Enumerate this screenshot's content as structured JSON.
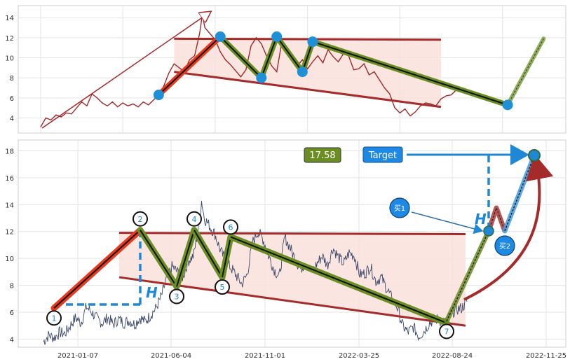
{
  "chart_data": [
    {
      "type": "line",
      "panel": "top",
      "title": "",
      "xlabel": "",
      "ylabel": "",
      "ylim": [
        2.5,
        15.2
      ],
      "yticks": [
        4,
        6,
        8,
        10,
        12,
        14
      ],
      "grid": true,
      "series": [
        {
          "values_by_time": [
            [
              0.0,
              3.1
            ],
            [
              0.01,
              4.0
            ],
            [
              0.02,
              3.8
            ],
            [
              0.03,
              4.3
            ],
            [
              0.04,
              4.1
            ],
            [
              0.05,
              4.5
            ],
            [
              0.06,
              4.4
            ],
            [
              0.07,
              5.0
            ],
            [
              0.08,
              5.6
            ],
            [
              0.09,
              5.2
            ],
            [
              0.1,
              6.4
            ],
            [
              0.11,
              6.0
            ],
            [
              0.12,
              5.5
            ],
            [
              0.13,
              5.2
            ],
            [
              0.14,
              5.6
            ],
            [
              0.15,
              5.1
            ],
            [
              0.16,
              5.5
            ],
            [
              0.17,
              5.2
            ],
            [
              0.18,
              5.4
            ],
            [
              0.19,
              5.1
            ],
            [
              0.2,
              5.6
            ],
            [
              0.21,
              5.3
            ],
            [
              0.22,
              5.8
            ],
            [
              0.23,
              6.3
            ],
            [
              0.24,
              7.2
            ],
            [
              0.25,
              8.5
            ],
            [
              0.26,
              9.4
            ],
            [
              0.27,
              9.0
            ],
            [
              0.28,
              8.6
            ],
            [
              0.29,
              9.8
            ],
            [
              0.3,
              10.2
            ],
            [
              0.31,
              12.5
            ],
            [
              0.315,
              14.3
            ],
            [
              0.32,
              13.0
            ],
            [
              0.33,
              12.4
            ],
            [
              0.34,
              11.8
            ],
            [
              0.35,
              10.6
            ],
            [
              0.36,
              9.8
            ],
            [
              0.37,
              9.3
            ],
            [
              0.38,
              8.7
            ],
            [
              0.39,
              8.1
            ],
            [
              0.4,
              8.8
            ],
            [
              0.41,
              11.2
            ],
            [
              0.42,
              12.0
            ],
            [
              0.43,
              11.4
            ],
            [
              0.44,
              10.2
            ],
            [
              0.45,
              9.2
            ],
            [
              0.46,
              8.6
            ],
            [
              0.47,
              11.6
            ],
            [
              0.48,
              10.8
            ],
            [
              0.49,
              9.9
            ],
            [
              0.5,
              9.2
            ],
            [
              0.51,
              9.8
            ],
            [
              0.52,
              8.9
            ],
            [
              0.53,
              9.6
            ],
            [
              0.54,
              10.2
            ],
            [
              0.55,
              9.5
            ],
            [
              0.56,
              10.8
            ],
            [
              0.57,
              10.1
            ],
            [
              0.58,
              9.6
            ],
            [
              0.59,
              10.4
            ],
            [
              0.6,
              10.2
            ],
            [
              0.61,
              8.8
            ],
            [
              0.62,
              8.9
            ],
            [
              0.63,
              9.4
            ],
            [
              0.64,
              8.3
            ],
            [
              0.65,
              8.6
            ],
            [
              0.66,
              7.8
            ],
            [
              0.67,
              7.0
            ],
            [
              0.68,
              6.4
            ],
            [
              0.69,
              5.0
            ],
            [
              0.7,
              4.5
            ],
            [
              0.71,
              4.9
            ],
            [
              0.72,
              4.2
            ],
            [
              0.73,
              4.6
            ],
            [
              0.74,
              5.2
            ],
            [
              0.75,
              5.5
            ],
            [
              0.76,
              5.4
            ],
            [
              0.77,
              5.2
            ],
            [
              0.78,
              5.9
            ],
            [
              0.79,
              6.2
            ],
            [
              0.8,
              6.3
            ],
            [
              0.81,
              6.8
            ]
          ]
        }
      ],
      "trendline_upper": [
        [
          0.26,
          11.9
        ],
        [
          0.78,
          11.8
        ]
      ],
      "trendline_lower": [
        [
          0.26,
          8.6
        ],
        [
          0.78,
          5.1
        ]
      ],
      "pivots": [
        [
          0.23,
          6.3
        ],
        [
          0.35,
          12.1
        ],
        [
          0.43,
          8.0
        ],
        [
          0.46,
          12.1
        ],
        [
          0.51,
          8.6
        ],
        [
          0.53,
          11.6
        ],
        [
          0.91,
          5.3
        ]
      ],
      "projection": [
        [
          0.91,
          5.3
        ],
        [
          0.98,
          11.9
        ]
      ]
    },
    {
      "type": "line",
      "panel": "bottom",
      "title": "",
      "xlabel": "",
      "ylabel": "",
      "ylim": [
        3.4,
        18.8
      ],
      "yticks": [
        4,
        6,
        8,
        10,
        12,
        14,
        16,
        18
      ],
      "xticks": [
        "2021-01-07",
        "2021-06-04",
        "2021-11-01",
        "2022-03-25",
        "2022-08-24",
        "2022-11-25"
      ],
      "grid": true,
      "pattern_points": [
        {
          "label": "1",
          "y": 6.3
        },
        {
          "label": "2",
          "y": 12.1
        },
        {
          "label": "3",
          "y": 7.9
        },
        {
          "label": "4",
          "y": 12.1
        },
        {
          "label": "5",
          "y": 8.6
        },
        {
          "label": "6",
          "y": 11.6
        },
        {
          "label": "7",
          "y": 5.2
        }
      ],
      "buy_points": [
        {
          "label": "买1",
          "y": 11.9
        },
        {
          "label": "买2",
          "y": 11.9
        }
      ],
      "target_value": 17.58,
      "target_label": "Target",
      "height_label": "H",
      "trendline_upper": [
        11.9,
        11.8
      ],
      "trendline_lower": [
        8.6,
        5.0
      ]
    }
  ],
  "colors": {
    "price_top": "#a0282a",
    "price_bottom": "#3c4a6a",
    "trend": "#a52a2a",
    "channel_fill": "#f9e1dc",
    "leg_green": "#6b8e23",
    "leg_red": "#e8391d",
    "pivot_blue": "#1e90d6",
    "target_box": "#1e88e5",
    "value_box": "#6b8e23",
    "dashed_blue": "#1e88d6"
  }
}
